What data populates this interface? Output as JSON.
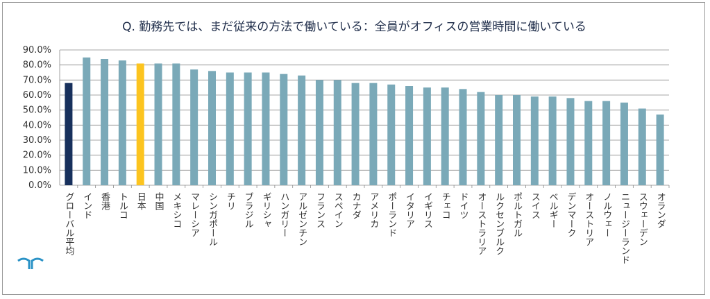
{
  "title": "Q. 勤務先では、まだ従来の方法で働いている：全員がオフィスの営業時間に働いている",
  "colors": {
    "default_bar": "#7aa9b8",
    "global_bar": "#17305c",
    "japan_bar": "#fcc41f",
    "grid": "#8a8a8a",
    "axis_text": "#333333",
    "logo": "#2a92c6"
  },
  "chart_data": {
    "type": "bar",
    "title": "Q. 勤務先では、まだ従来の方法で働いている：全員がオフィスの営業時間に働いている",
    "xlabel": "",
    "ylabel": "",
    "ylim": [
      0,
      90
    ],
    "yticks": [
      "0.0%",
      "10.0%",
      "20.0%",
      "30.0%",
      "40.0%",
      "50.0%",
      "60.0%",
      "70.0%",
      "80.0%",
      "90.0%"
    ],
    "grid": true,
    "categories": [
      "グローバル平均",
      "インド",
      "香港",
      "トルコ",
      "日本",
      "中国",
      "メキシコ",
      "マレーシア",
      "シンガポール",
      "チリ",
      "ブラジル",
      "ギリシャ",
      "ハンガリー",
      "アルゼンチン",
      "フランス",
      "スペイン",
      "カナダ",
      "アメリカ",
      "ポーランド",
      "イタリア",
      "イギリス",
      "チェコ",
      "ドイツ",
      "オーストラリア",
      "ルクセンブルク",
      "ポルトガル",
      "スイス",
      "ベルギー",
      "デンマーク",
      "オーストリア",
      "ノルウェー",
      "ニュージーランド",
      "スウェーデン",
      "オランダ"
    ],
    "values": [
      68,
      85,
      84,
      83,
      81,
      81,
      81,
      77,
      76,
      75,
      75,
      75,
      74,
      73,
      70,
      70,
      68,
      68,
      67,
      66,
      65,
      65,
      64,
      62,
      60,
      60,
      59,
      59,
      58,
      56,
      56,
      55,
      51,
      47
    ],
    "highlight": {
      "グローバル平均": "global",
      "日本": "japan"
    }
  }
}
